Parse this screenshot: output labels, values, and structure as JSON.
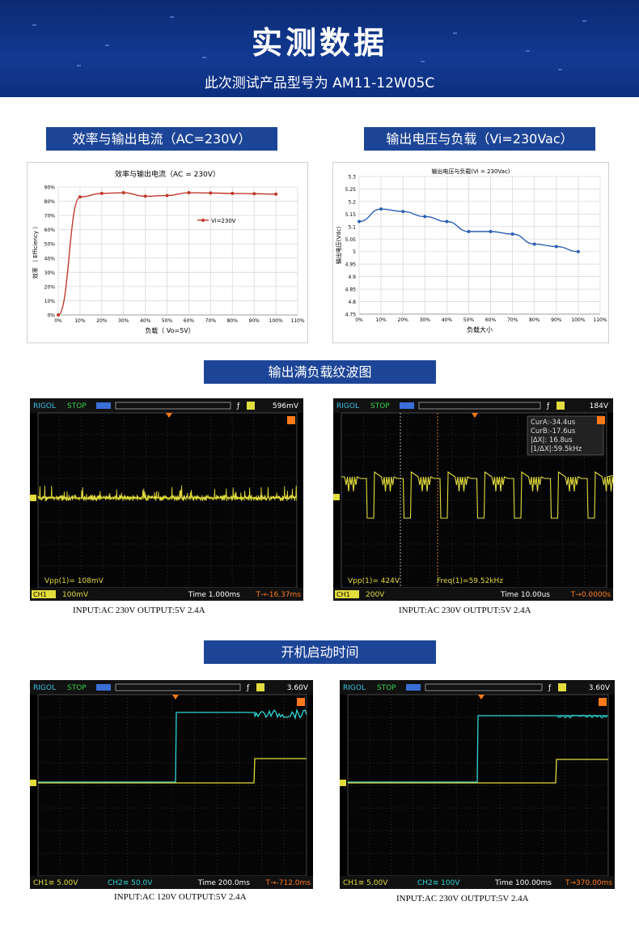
{
  "header": {
    "title": "实测数据",
    "subtitle": "此次测试产品型号为 AM11-12W05C"
  },
  "sections": {
    "efficiency": "效率与输出电流（AC=230V）",
    "voltage": "输出电压与负载（Vi=230Vac）",
    "ripple": "输出满负载纹波图",
    "startup": "开机启动时间"
  },
  "chart_data": [
    {
      "type": "line",
      "title": "效率与输出电流（AC = 230V）",
      "xlabel": "负载（ Vo=5V）",
      "ylabel": "效率 （ Efficiency ）",
      "x": [
        "0%",
        "10%",
        "20%",
        "30%",
        "40%",
        "50%",
        "60%",
        "70%",
        "80%",
        "90%",
        "100%"
      ],
      "x_ticks": [
        "0%",
        "10%",
        "20%",
        "30%",
        "40%",
        "50%",
        "60%",
        "70%",
        "80%",
        "90%",
        "100%",
        "110%"
      ],
      "y_ticks": [
        "0%",
        "10%",
        "20%",
        "30%",
        "40%",
        "50%",
        "60%",
        "70%",
        "80%",
        "90%"
      ],
      "ylim": [
        0,
        90
      ],
      "series": [
        {
          "name": "Vi=230V",
          "values": [
            0,
            83,
            85.5,
            86,
            83.5,
            84,
            86,
            85.8,
            85.5,
            85.3,
            85
          ],
          "color": "#c0392b"
        }
      ],
      "legend": "right-middle",
      "grid": true
    },
    {
      "type": "line",
      "title": "输出电压与负载(Vi = 230Vac)",
      "xlabel": "负载大小",
      "ylabel": "输出电压(Vdc)",
      "x": [
        "0%",
        "10%",
        "20%",
        "30%",
        "40%",
        "50%",
        "60%",
        "70%",
        "80%",
        "90%",
        "100%"
      ],
      "x_ticks": [
        "0%",
        "10%",
        "20%",
        "30%",
        "40%",
        "50%",
        "60%",
        "70%",
        "80%",
        "90%",
        "100%",
        "110%"
      ],
      "y_ticks": [
        "4.75",
        "4.8",
        "4.85",
        "4.9",
        "4.95",
        "5",
        "5.05",
        "5.1",
        "5.15",
        "5.2",
        "5.25",
        "5.3"
      ],
      "ylim": [
        4.75,
        5.3
      ],
      "series": [
        {
          "values": [
            5.12,
            5.17,
            5.16,
            5.14,
            5.12,
            5.08,
            5.08,
            5.07,
            5.03,
            5.02,
            5.0
          ],
          "color": "#2b5fb4"
        }
      ],
      "grid": true
    }
  ],
  "scopes": [
    {
      "brand": "RIGOL",
      "state": "STOP",
      "trig": "596mV",
      "meas": "Vpp(1)= 108mV",
      "meas2": "",
      "ch1": "100mV",
      "ch2": "",
      "time": "Time 1.000ms",
      "offset": "T→-16.37ms",
      "caption": "INPUT:AC 230V OUTPUT:5V 2.4A"
    },
    {
      "brand": "RIGOL",
      "state": "STOP",
      "trig": "184V",
      "meas": "Vpp(1)= 424V",
      "meas2": "Freq(1)=59.52kHz",
      "cursor": [
        "CurA:-34.4us",
        "CurB:-17.6us",
        "|ΔX|: 16.8us",
        "|1/ΔX|:59.5kHz"
      ],
      "ch1": "200V",
      "ch2": "",
      "time": "Time 10.00us",
      "offset": "T→0.0000s",
      "caption": "INPUT:AC 230V OUTPUT:5V 2.4A"
    },
    {
      "brand": "RIGOL",
      "state": "STOP",
      "trig": "3.60V",
      "meas": "",
      "meas2": "",
      "ch1": "CH1≡ 5.00V",
      "ch2": "CH2≡ 50.0V",
      "time": "Time 200.0ms",
      "offset": "T→-712.0ms",
      "caption": "INPUT:AC 120V OUTPUT:5V 2.4A"
    },
    {
      "brand": "RIGOL",
      "state": "STOP",
      "trig": "3.60V",
      "meas": "",
      "meas2": "",
      "ch1": "CH1≡ 5.00V",
      "ch2": "CH2≡ 100V",
      "time": "Time 100.00ms",
      "offset": "T→370.00ms",
      "caption": "INPUT:AC 230V OUTPUT:5V 2.4A"
    }
  ],
  "colors": {
    "banner": "#123a92",
    "section_bar": "#1d4597",
    "ch1": "#e2dc3c",
    "ch2": "#2fd6d8"
  }
}
